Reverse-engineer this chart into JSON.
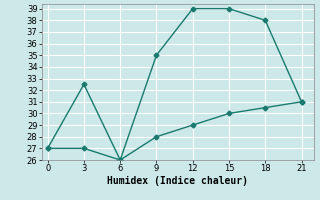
{
  "x": [
    0,
    3,
    6,
    9,
    12,
    15,
    18,
    21
  ],
  "y_max": [
    27,
    32.5,
    26,
    35,
    39,
    39,
    38,
    31
  ],
  "y_min": [
    27,
    27,
    26,
    28,
    29,
    30,
    30.5,
    31
  ],
  "color": "#1a7a6e",
  "xlabel": "Humidex (Indice chaleur)",
  "ylim": [
    26,
    39.4
  ],
  "xlim": [
    -0.5,
    22
  ],
  "yticks": [
    26,
    27,
    28,
    29,
    30,
    31,
    32,
    33,
    34,
    35,
    36,
    37,
    38,
    39
  ],
  "xticks": [
    0,
    3,
    6,
    9,
    12,
    15,
    18,
    21
  ],
  "bg_color": "#cce8e8",
  "grid_color": "#ffffff",
  "xlabel_fontsize": 7,
  "tick_fontsize": 6,
  "marker": "D",
  "markersize": 2.5,
  "linewidth": 1.0
}
